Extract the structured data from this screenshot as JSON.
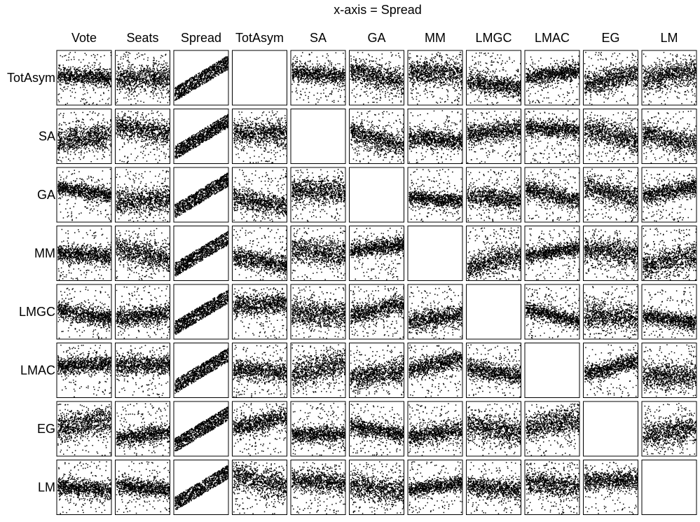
{
  "chart_data": {
    "type": "scatter",
    "title": "x-axis = Spread",
    "columns": [
      "Vote",
      "Seats",
      "Spread",
      "TotAsym",
      "SA",
      "GA",
      "MM",
      "LMGC",
      "LMAC",
      "EG",
      "LM"
    ],
    "rows": [
      "TotAsym",
      "SA",
      "GA",
      "MM",
      "LMGC",
      "LMAC",
      "EG",
      "LM"
    ],
    "grid": false,
    "legend": "none",
    "marker_color": "#000000",
    "panel_border_color": "#000000",
    "empty_panels": [
      "TotAsym|TotAsym",
      "SA|SA",
      "GA|GA",
      "MM|MM",
      "LMGC|LMGC",
      "LMAC|LMAC",
      "EG|EG",
      "LM|LM"
    ],
    "spread_column_relationship": "positive linear band",
    "points_per_panel": 1000
  }
}
